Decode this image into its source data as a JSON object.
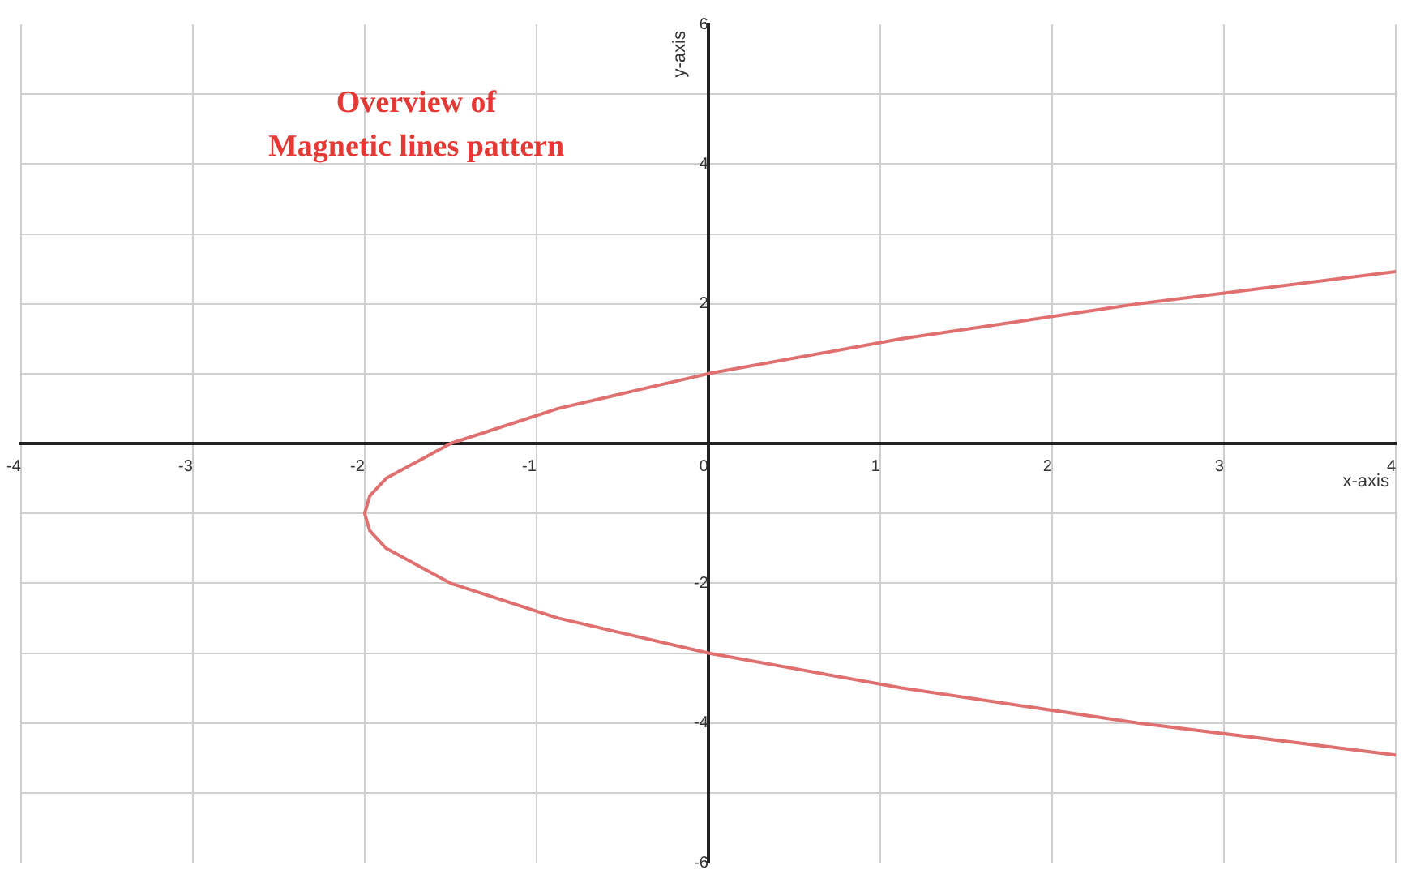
{
  "chart_data": {
    "type": "line",
    "title": "Overview of\nMagnetic lines pattern",
    "xlabel": "x-axis",
    "ylabel": "y-axis",
    "series": [
      {
        "color": "#e07070",
        "x": [
          4,
          2.5,
          1.125,
          0,
          -0.875,
          -1.5,
          -1.875,
          -1.97,
          -2,
          -1.97,
          -1.875,
          -1.5,
          -0.875,
          0,
          1.125,
          2.5,
          4
        ],
        "values": [
          2.46,
          2,
          1.5,
          1,
          0.5,
          0,
          -0.5,
          -0.75,
          -1,
          -1.25,
          -1.5,
          -2,
          -2.5,
          -3,
          -3.5,
          -4,
          -4.46
        ]
      }
    ],
    "xlim": [
      -4,
      4
    ],
    "xticks": [
      -4,
      -3,
      -2,
      -1,
      0,
      1,
      2,
      3,
      4
    ],
    "ylim": [
      -6,
      6
    ],
    "yticks": [
      -6,
      {
        "value": -5,
        "label": null
      },
      -4,
      {
        "value": -3,
        "label": null
      },
      -2,
      {
        "value": -1,
        "label": null
      },
      {
        "value": 0,
        "label": null
      },
      {
        "value": 1,
        "label": null
      },
      2,
      {
        "value": 3,
        "label": null
      },
      4,
      {
        "value": 5,
        "label": null
      },
      6
    ],
    "grid": true,
    "marker": "none",
    "line_style": "solid",
    "legend": false
  }
}
